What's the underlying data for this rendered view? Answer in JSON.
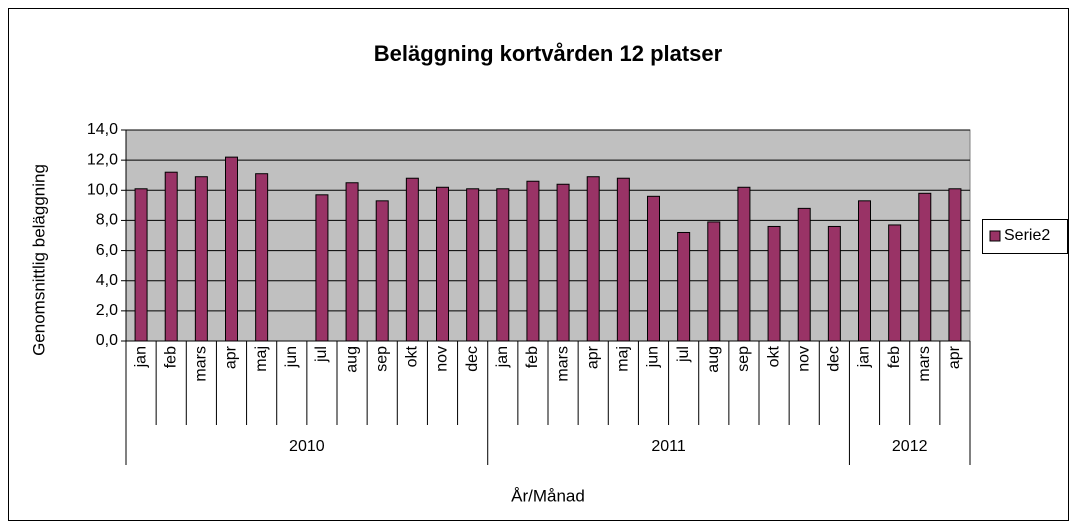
{
  "chart_data": {
    "type": "bar",
    "title": "Beläggning kortvården 12 platser",
    "y_label": "Genomsnittlig beläggning",
    "x_label": "År/Månad",
    "categories": [
      "jan",
      "feb",
      "mars",
      "apr",
      "maj",
      "jun",
      "jul",
      "aug",
      "sep",
      "okt",
      "nov",
      "dec",
      "jan",
      "feb",
      "mars",
      "apr",
      "maj",
      "jun",
      "jul",
      "aug",
      "sep",
      "okt",
      "nov",
      "dec",
      "jan",
      "feb",
      "mars",
      "apr"
    ],
    "category_groups": [
      "2010",
      null,
      null,
      null,
      null,
      null,
      null,
      null,
      null,
      null,
      null,
      null,
      "2011",
      null,
      null,
      null,
      null,
      null,
      null,
      null,
      null,
      null,
      null,
      null,
      "2012",
      null,
      null,
      null
    ],
    "series": [
      {
        "name": "Serie2",
        "color": "#993366",
        "values": [
          10.1,
          11.2,
          10.9,
          12.2,
          11.1,
          null,
          9.7,
          10.5,
          9.3,
          10.8,
          10.2,
          10.1,
          10.1,
          10.6,
          10.4,
          10.9,
          10.8,
          9.6,
          7.2,
          7.9,
          10.2,
          7.6,
          8.8,
          7.6,
          9.3,
          7.7,
          9.8,
          10.1
        ]
      }
    ],
    "ylim": [
      0,
      14
    ],
    "yticks": [
      {
        "value": 0,
        "label": "0,0"
      },
      {
        "value": 2,
        "label": "2,0"
      },
      {
        "value": 4,
        "label": "4,0"
      },
      {
        "value": 6,
        "label": "6,0"
      },
      {
        "value": 8,
        "label": "8,0"
      },
      {
        "value": 10,
        "label": "10,0"
      },
      {
        "value": 12,
        "label": "12,0"
      },
      {
        "value": 14,
        "label": "14,0"
      }
    ],
    "grid": true,
    "plot_background": "#c0c0c0",
    "legend": "right"
  }
}
